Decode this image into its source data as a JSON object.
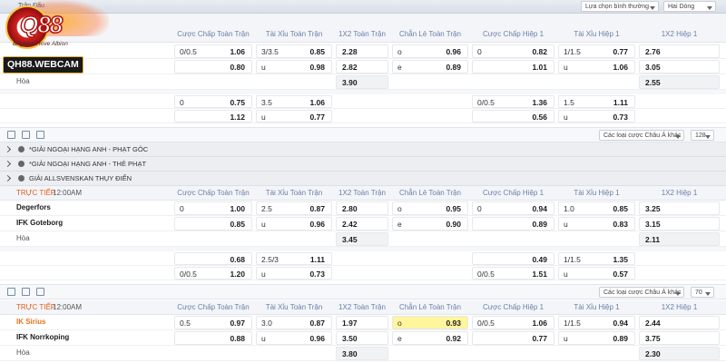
{
  "top_bar": {
    "title": "Trận Đấu",
    "view_select": "Lựa chọn bình thường",
    "line_select": "Hai Dòng"
  },
  "logo": {
    "mark": "Q88",
    "brand": "QH88.WEBCAM",
    "team_caption": "Brighton Hove Albion"
  },
  "columns": [
    "Cược Chấp Toàn Trận",
    "Tài Xỉu Toàn Trận",
    "1X2 Toàn Trận",
    "Chẵn Lẻ Toàn Trận",
    "Cược Chấp Hiệp 1",
    "Tài Xỉu Hiệp 1",
    "1X2 Hiệp 1"
  ],
  "match_1": {
    "teams": [
      null,
      null,
      "Hòa"
    ],
    "rows": [
      [
        "0/0.5",
        "1.06",
        "3/3.5",
        "0.85",
        null,
        "2.28",
        "o",
        "0.96",
        "0",
        "0.82",
        "1/1.5",
        "0.77",
        null,
        "2.76"
      ],
      [
        null,
        "0.80",
        "u",
        "0.98",
        null,
        "2.82",
        "e",
        "0.89",
        null,
        "1.01",
        "u",
        "1.06",
        null,
        "3.05"
      ],
      [
        null,
        null,
        null,
        null,
        null,
        "3.90",
        null,
        null,
        null,
        null,
        null,
        null,
        null,
        "2.55"
      ],
      [
        "0",
        "0.75",
        "3.5",
        "1.06",
        null,
        null,
        null,
        null,
        "0/0.5",
        "1.36",
        "1.5",
        "1.11",
        null,
        null
      ],
      [
        null,
        "1.12",
        "u",
        "0.77",
        null,
        null,
        null,
        null,
        null,
        "0.56",
        "u",
        "0.73",
        null,
        null
      ]
    ]
  },
  "toolbar_1": {
    "other_bets": "Các loại cược Châu Á khác",
    "count": "128"
  },
  "leagues": [
    "*GIẢI NGOẠI HẠNG ANH - PHẠT GÓC",
    "*GIẢI NGOẠI HẠNG ANH - THẺ PHẠT",
    "GIẢI ALLSVENSKAN THỤY ĐIỂN"
  ],
  "match_2": {
    "live_label": "TRỰC TIẾP",
    "time": "12:00AM",
    "teams": [
      "Degerfors",
      "IFK Goteborg",
      "Hòa"
    ],
    "rows": [
      [
        "0",
        "1.00",
        "2.5",
        "0.87",
        null,
        "2.80",
        "o",
        "0.95",
        "0",
        "0.94",
        "1.0",
        "0.85",
        null,
        "3.25"
      ],
      [
        null,
        "0.85",
        "u",
        "0.96",
        null,
        "2.42",
        "e",
        "0.90",
        null,
        "0.89",
        "u",
        "0.83",
        null,
        "3.15"
      ],
      [
        null,
        null,
        null,
        null,
        null,
        "3.45",
        null,
        null,
        null,
        null,
        null,
        null,
        null,
        "2.11"
      ],
      [
        null,
        "0.68",
        "2.5/3",
        "1.11",
        null,
        null,
        null,
        null,
        null,
        "0.49",
        "1/1.5",
        "1.35",
        null,
        null
      ],
      [
        "0/0.5",
        "1.20",
        "u",
        "0.73",
        null,
        null,
        null,
        null,
        "0/0.5",
        "1.51",
        "u",
        "0.57",
        null,
        null
      ]
    ]
  },
  "toolbar_2": {
    "other_bets": "Các loại cược Châu Á khác",
    "count": "70"
  },
  "match_3": {
    "live_label": "TRỰC TIẾP",
    "time": "12:00AM",
    "teams": [
      "IK Sirius",
      "IFK Norrkoping",
      "Hòa"
    ],
    "rows": [
      [
        "0.5",
        "0.97",
        "3.0",
        "0.87",
        null,
        "1.97",
        "o",
        "0.93",
        "0/0.5",
        "1.06",
        "1/1.5",
        "0.94",
        null,
        "2.44"
      ],
      [
        null,
        "0.88",
        "u",
        "0.96",
        null,
        "3.50",
        "e",
        "0.92",
        null,
        "0.77",
        "u",
        "0.89",
        null,
        "3.75"
      ],
      [
        null,
        null,
        null,
        null,
        null,
        "3.80",
        null,
        null,
        null,
        null,
        null,
        null,
        null,
        "2.30"
      ]
    ]
  }
}
